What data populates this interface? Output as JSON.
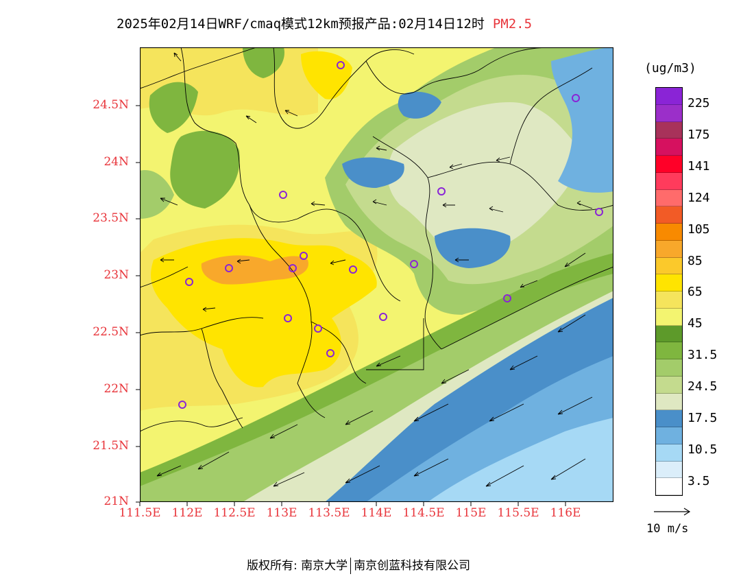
{
  "title": {
    "main": "2025年02月14日WRF/cmaq模式12km预报产品:02月14日12时",
    "pollutant": "PM2.5",
    "pollutant_color": "#e8343a"
  },
  "axes": {
    "lat_labels": [
      "24.5N",
      "24N",
      "23.5N",
      "23N",
      "22.5N",
      "22N",
      "21.5N",
      "21N"
    ],
    "lon_labels": [
      "111.5E",
      "112E",
      "112.5E",
      "113E",
      "113.5E",
      "114E",
      "114.5E",
      "115E",
      "115.5E",
      "116E"
    ],
    "label_color": "#e8343a",
    "lat_range": [
      21.0,
      25.0
    ],
    "lon_range": [
      111.5,
      116.5
    ]
  },
  "legend": {
    "unit": "(ug/m3)",
    "colors": [
      "#ffffff",
      "#dbeefa",
      "#a6d9f5",
      "#6fb1e0",
      "#4a8fc9",
      "#dfe8c2",
      "#c4db8e",
      "#a3cc6a",
      "#7fb63f",
      "#5d9a2a",
      "#f3f470",
      "#f5e45c",
      "#ffe400",
      "#fbc92b",
      "#f8a82b",
      "#f88a00",
      "#f25b26",
      "#ff6b6b",
      "#ff3b5c",
      "#ff0028",
      "#d6115f",
      "#a8325a",
      "#9b2fc9",
      "#8a24d6"
    ],
    "labels": [
      "3.5",
      "10.5",
      "17.5",
      "24.5",
      "31.5",
      "45",
      "65",
      "85",
      "105",
      "124",
      "141",
      "175",
      "225"
    ]
  },
  "wind_reference": {
    "label": "10 m/s"
  },
  "copyright": {
    "left": "版权所有: 南京大学",
    "right": "南京创蓝科技有限公司"
  }
}
